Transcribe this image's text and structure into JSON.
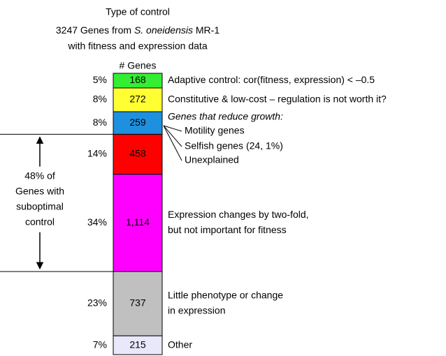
{
  "chart_data": {
    "type": "stacked-bar",
    "title": "Type of control",
    "subtitle_parts": [
      "3247 Genes from ",
      "S. oneidensis",
      " MR-1"
    ],
    "subtitle_line2": "with fitness and expression data",
    "value_header": "# Genes",
    "values": [
      168,
      272,
      259,
      458,
      1114,
      737,
      215
    ],
    "value_labels": [
      "168",
      "272",
      "259",
      "458",
      "1,114",
      "737",
      "215"
    ],
    "percent_labels": [
      "5%",
      "8%",
      "8%",
      "14%",
      "34%",
      "23%",
      "7%"
    ],
    "colors": [
      "#33ee33",
      "#ffff33",
      "#1e90e0",
      "#ff0000",
      "#ff00ff",
      "#c0c0c0",
      "#e8e8fa"
    ],
    "descriptions": [
      [
        "Adaptive control: cor(fitness, expression) < –0.5"
      ],
      [
        "Constitutive & low-cost – regulation is not worth it?"
      ],
      [
        "Genes that reduce growth:"
      ],
      [],
      [
        "Expression changes by two-fold,",
        "but not important for fitness"
      ],
      [
        "Little phenotype or change",
        "in expression"
      ],
      [
        "Other"
      ]
    ],
    "sub_items": [
      "Motility genes",
      "Selfish genes (24, 1%)",
      "Unexplained"
    ],
    "bracket_label": [
      "48% of",
      "Genes with",
      "suboptimal",
      "control"
    ]
  }
}
